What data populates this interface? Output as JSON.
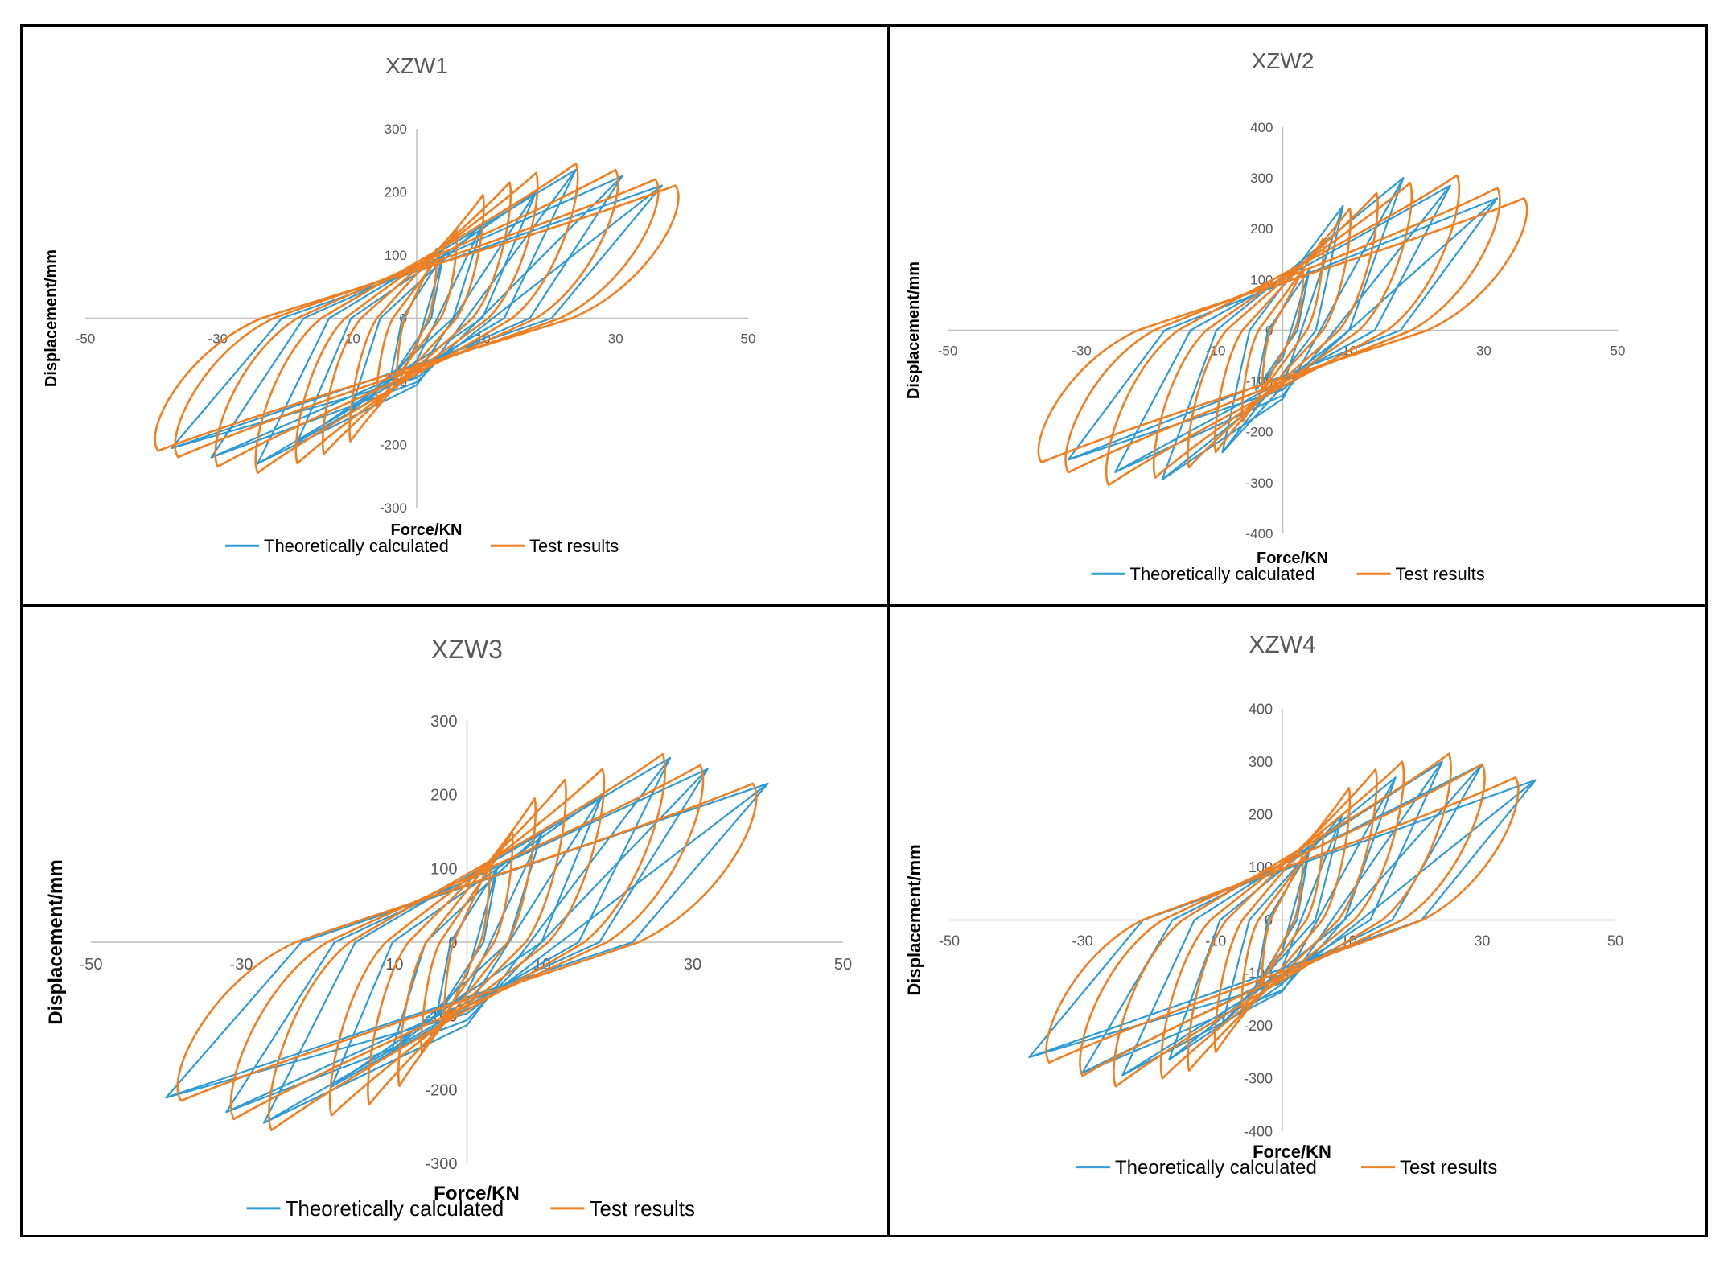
{
  "colors": {
    "theory": "#2E9BD5",
    "test": "#F07F21",
    "axis": "#BFBFBF",
    "tick": "#595959",
    "title": "#595959"
  },
  "chart_data": [
    {
      "type": "line",
      "title": "XZW1",
      "xlabel": "Force/KN",
      "ylabel": "Displacement/mm",
      "xlim": [
        -50,
        50
      ],
      "ylim": [
        -300,
        300
      ],
      "xticks": [
        "-50",
        "-30",
        "-10",
        "10",
        "30",
        "50"
      ],
      "yticks": [
        "300",
        "200",
        "100",
        "0",
        "-100",
        "-200",
        "-300"
      ],
      "legend": {
        "position": "bottom",
        "entries": [
          "Theoretically calculated",
          "Test results"
        ]
      },
      "series": [
        {
          "name": "Theoretically calculated",
          "peak_pos": [
            37,
            210
          ],
          "peak_neg": [
            -38,
            -210
          ],
          "loops": [
            [
              4,
              100
            ],
            [
              10,
              150
            ],
            [
              18,
              200
            ],
            [
              24,
              235
            ],
            [
              31,
              225
            ],
            [
              37,
              210
            ]
          ]
        },
        {
          "name": "Test results",
          "peak_pos": [
            39,
            210
          ],
          "peak_neg": [
            -39,
            -210
          ],
          "loops": [
            [
              3,
              110
            ],
            [
              6,
              140
            ],
            [
              10,
              195
            ],
            [
              14,
              215
            ],
            [
              18,
              230
            ],
            [
              24,
              245
            ],
            [
              30,
              235
            ],
            [
              36,
              220
            ],
            [
              39,
              210
            ]
          ]
        }
      ]
    },
    {
      "type": "line",
      "title": "XZW2",
      "xlabel": "Force/KN",
      "ylabel": "Displacement/mm",
      "xlim": [
        -50,
        50
      ],
      "ylim": [
        -400,
        400
      ],
      "xticks": [
        "-50",
        "-30",
        "-10",
        "10",
        "30",
        "50"
      ],
      "yticks": [
        "400",
        "300",
        "200",
        "100",
        "0",
        "-100",
        "-200",
        "-300",
        "-400"
      ],
      "legend": {
        "position": "bottom",
        "entries": [
          "Theoretically calculated",
          "Test results"
        ]
      },
      "series": [
        {
          "name": "Theoretically calculated",
          "peak_pos": [
            32,
            260
          ],
          "peak_neg": [
            -34,
            -260
          ],
          "loops": [
            [
              4,
              120
            ],
            [
              9,
              245
            ],
            [
              18,
              300
            ],
            [
              25,
              285
            ],
            [
              32,
              260
            ]
          ]
        },
        {
          "name": "Test results",
          "peak_pos": [
            36,
            260
          ],
          "peak_neg": [
            -36,
            -260
          ],
          "loops": [
            [
              3,
              120
            ],
            [
              6,
              180
            ],
            [
              10,
              240
            ],
            [
              14,
              270
            ],
            [
              19,
              290
            ],
            [
              26,
              305
            ],
            [
              32,
              280
            ],
            [
              36,
              260
            ]
          ]
        }
      ]
    },
    {
      "type": "line",
      "title": "XZW3",
      "xlabel": "Force/KN",
      "ylabel": "Displacement/mm",
      "xlim": [
        -50,
        50
      ],
      "ylim": [
        -300,
        300
      ],
      "xticks": [
        "-50",
        "-30",
        "-10",
        "10",
        "30",
        "50"
      ],
      "yticks": [
        "300",
        "200",
        "100",
        "0",
        "-100",
        "-200",
        "-300"
      ],
      "legend": {
        "position": "bottom",
        "entries": [
          "Theoretically calculated",
          "Test results"
        ]
      },
      "series": [
        {
          "name": "Theoretically calculated",
          "peak_pos": [
            40,
            215
          ],
          "peak_neg": [
            -40,
            -215
          ],
          "loops": [
            [
              4,
              100
            ],
            [
              10,
              150
            ],
            [
              18,
              200
            ],
            [
              27,
              250
            ],
            [
              32,
              235
            ],
            [
              40,
              215
            ]
          ]
        },
        {
          "name": "Test results",
          "peak_pos": [
            38,
            215
          ],
          "peak_neg": [
            -38,
            -215
          ],
          "loops": [
            [
              3,
              110
            ],
            [
              6,
              150
            ],
            [
              9,
              195
            ],
            [
              13,
              220
            ],
            [
              18,
              235
            ],
            [
              26,
              255
            ],
            [
              31,
              240
            ],
            [
              38,
              215
            ]
          ]
        }
      ]
    },
    {
      "type": "line",
      "title": "XZW4",
      "xlabel": "Force/KN",
      "ylabel": "Displacement/mm",
      "xlim": [
        -50,
        50
      ],
      "ylim": [
        -400,
        400
      ],
      "xticks": [
        "-50",
        "-30",
        "-10",
        "10",
        "30",
        "50"
      ],
      "yticks": [
        "400",
        "300",
        "200",
        "100",
        "0",
        "-100",
        "-200",
        "-300",
        "-400"
      ],
      "legend": {
        "position": "bottom",
        "entries": [
          "Theoretically calculated",
          "Test results"
        ]
      },
      "series": [
        {
          "name": "Theoretically calculated",
          "peak_pos": [
            38,
            265
          ],
          "peak_neg": [
            -38,
            -265
          ],
          "loops": [
            [
              4,
              130
            ],
            [
              9,
              200
            ],
            [
              17,
              270
            ],
            [
              24,
              300
            ],
            [
              30,
              295
            ],
            [
              38,
              265
            ]
          ]
        },
        {
          "name": "Test results",
          "peak_pos": [
            35,
            270
          ],
          "peak_neg": [
            -35,
            -270
          ],
          "loops": [
            [
              3,
              120
            ],
            [
              6,
              170
            ],
            [
              10,
              250
            ],
            [
              14,
              285
            ],
            [
              18,
              300
            ],
            [
              25,
              315
            ],
            [
              30,
              295
            ],
            [
              35,
              270
            ]
          ]
        }
      ]
    }
  ]
}
